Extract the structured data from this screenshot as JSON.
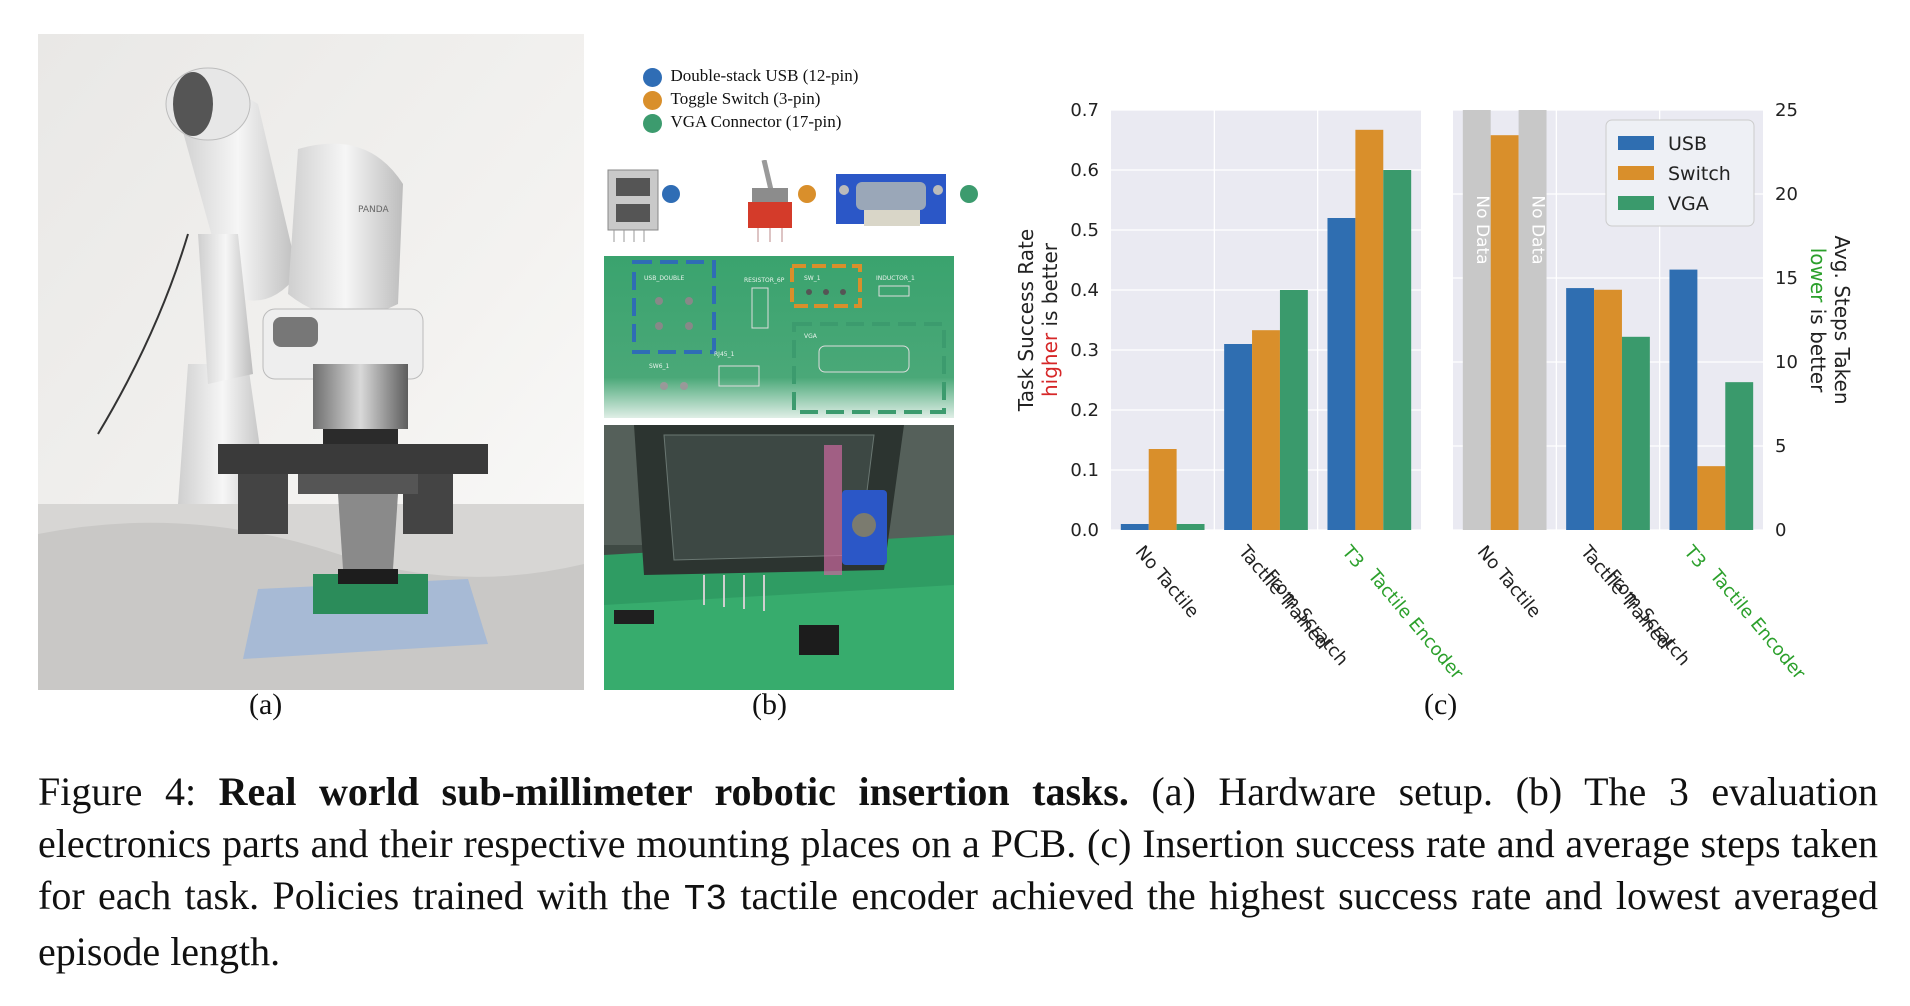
{
  "panels": {
    "a_label": "(a)",
    "b_label": "(b)",
    "c_label": "(c)"
  },
  "photo_a": {
    "arm_brand_text": "PANDA"
  },
  "legend_b": [
    {
      "label": "Double-stack USB (12-pin)",
      "color": "#2f6db5"
    },
    {
      "label": "Toggle Switch (3-pin)",
      "color": "#d98f2b"
    },
    {
      "label": "VGA Connector (17-pin)",
      "color": "#3c9b6e"
    }
  ],
  "pcb_labels": {
    "usb": "USB_DOUBLE",
    "resistor": "RESISTOR_6P",
    "switch": "SW_1",
    "inductor": "INDUCTOR_1",
    "vga": "VGA",
    "sw": "SW6_1",
    "rj45": "RJ45_1"
  },
  "colors": {
    "usb": "#2f6eb1",
    "switch": "#d98f2b",
    "vga": "#3a9a6c",
    "nodata": "#c8c8c8",
    "plot_bg": "#eaeaf2",
    "higher": "#d62728",
    "lower": "#2ca02c",
    "t3": "#2ca02c"
  },
  "chart_data": [
    {
      "type": "bar",
      "ylabel_parts": [
        "Task Success Rate",
        "higher",
        "is better"
      ],
      "categories": [
        "No Tactile",
        "Tactile Trained\nFrom Scratch",
        "T3\nTactile Encoder"
      ],
      "series": [
        {
          "name": "USB",
          "values": [
            0.01,
            0.31,
            0.52
          ]
        },
        {
          "name": "Switch",
          "values": [
            0.135,
            0.333,
            0.667
          ]
        },
        {
          "name": "VGA",
          "values": [
            0.01,
            0.4,
            0.6
          ]
        }
      ],
      "ylim": [
        0,
        0.7
      ],
      "yticks": [
        "0.0",
        "0.1",
        "0.2",
        "0.3",
        "0.4",
        "0.5",
        "0.6",
        "0.7"
      ],
      "grid": true
    },
    {
      "type": "bar",
      "ylabel_parts": [
        "Avg. Steps Taken",
        "lower",
        "is better"
      ],
      "categories": [
        "No Tactile",
        "Tactile Trained\nFrom Scratch",
        "T3\nTactile Encoder"
      ],
      "series": [
        {
          "name": "USB",
          "values": [
            null,
            14.4,
            15.5
          ]
        },
        {
          "name": "Switch",
          "values": [
            23.5,
            14.3,
            3.8
          ]
        },
        {
          "name": "VGA",
          "values": [
            null,
            11.5,
            8.8
          ]
        }
      ],
      "no_data_label": "No Data",
      "ylim": [
        0,
        25
      ],
      "yticks": [
        "0",
        "5",
        "10",
        "15",
        "20",
        "25"
      ],
      "legend": [
        "USB",
        "Switch",
        "VGA"
      ],
      "legend_position": "top-right",
      "grid": true
    }
  ],
  "caption": {
    "figure_label": "Figure 4:",
    "bold_title": "Real world sub-millimeter robotic insertion tasks.",
    "text_1": "(a) Hardware setup.  (b) The 3 evaluation electronics parts and their respective mounting places on a PCB. (c) Insertion success rate and average steps taken for each task. Policies trained with the",
    "t3": "T3",
    "text_2": "tactile encoder achieved the highest success rate and lowest averaged episode length."
  }
}
